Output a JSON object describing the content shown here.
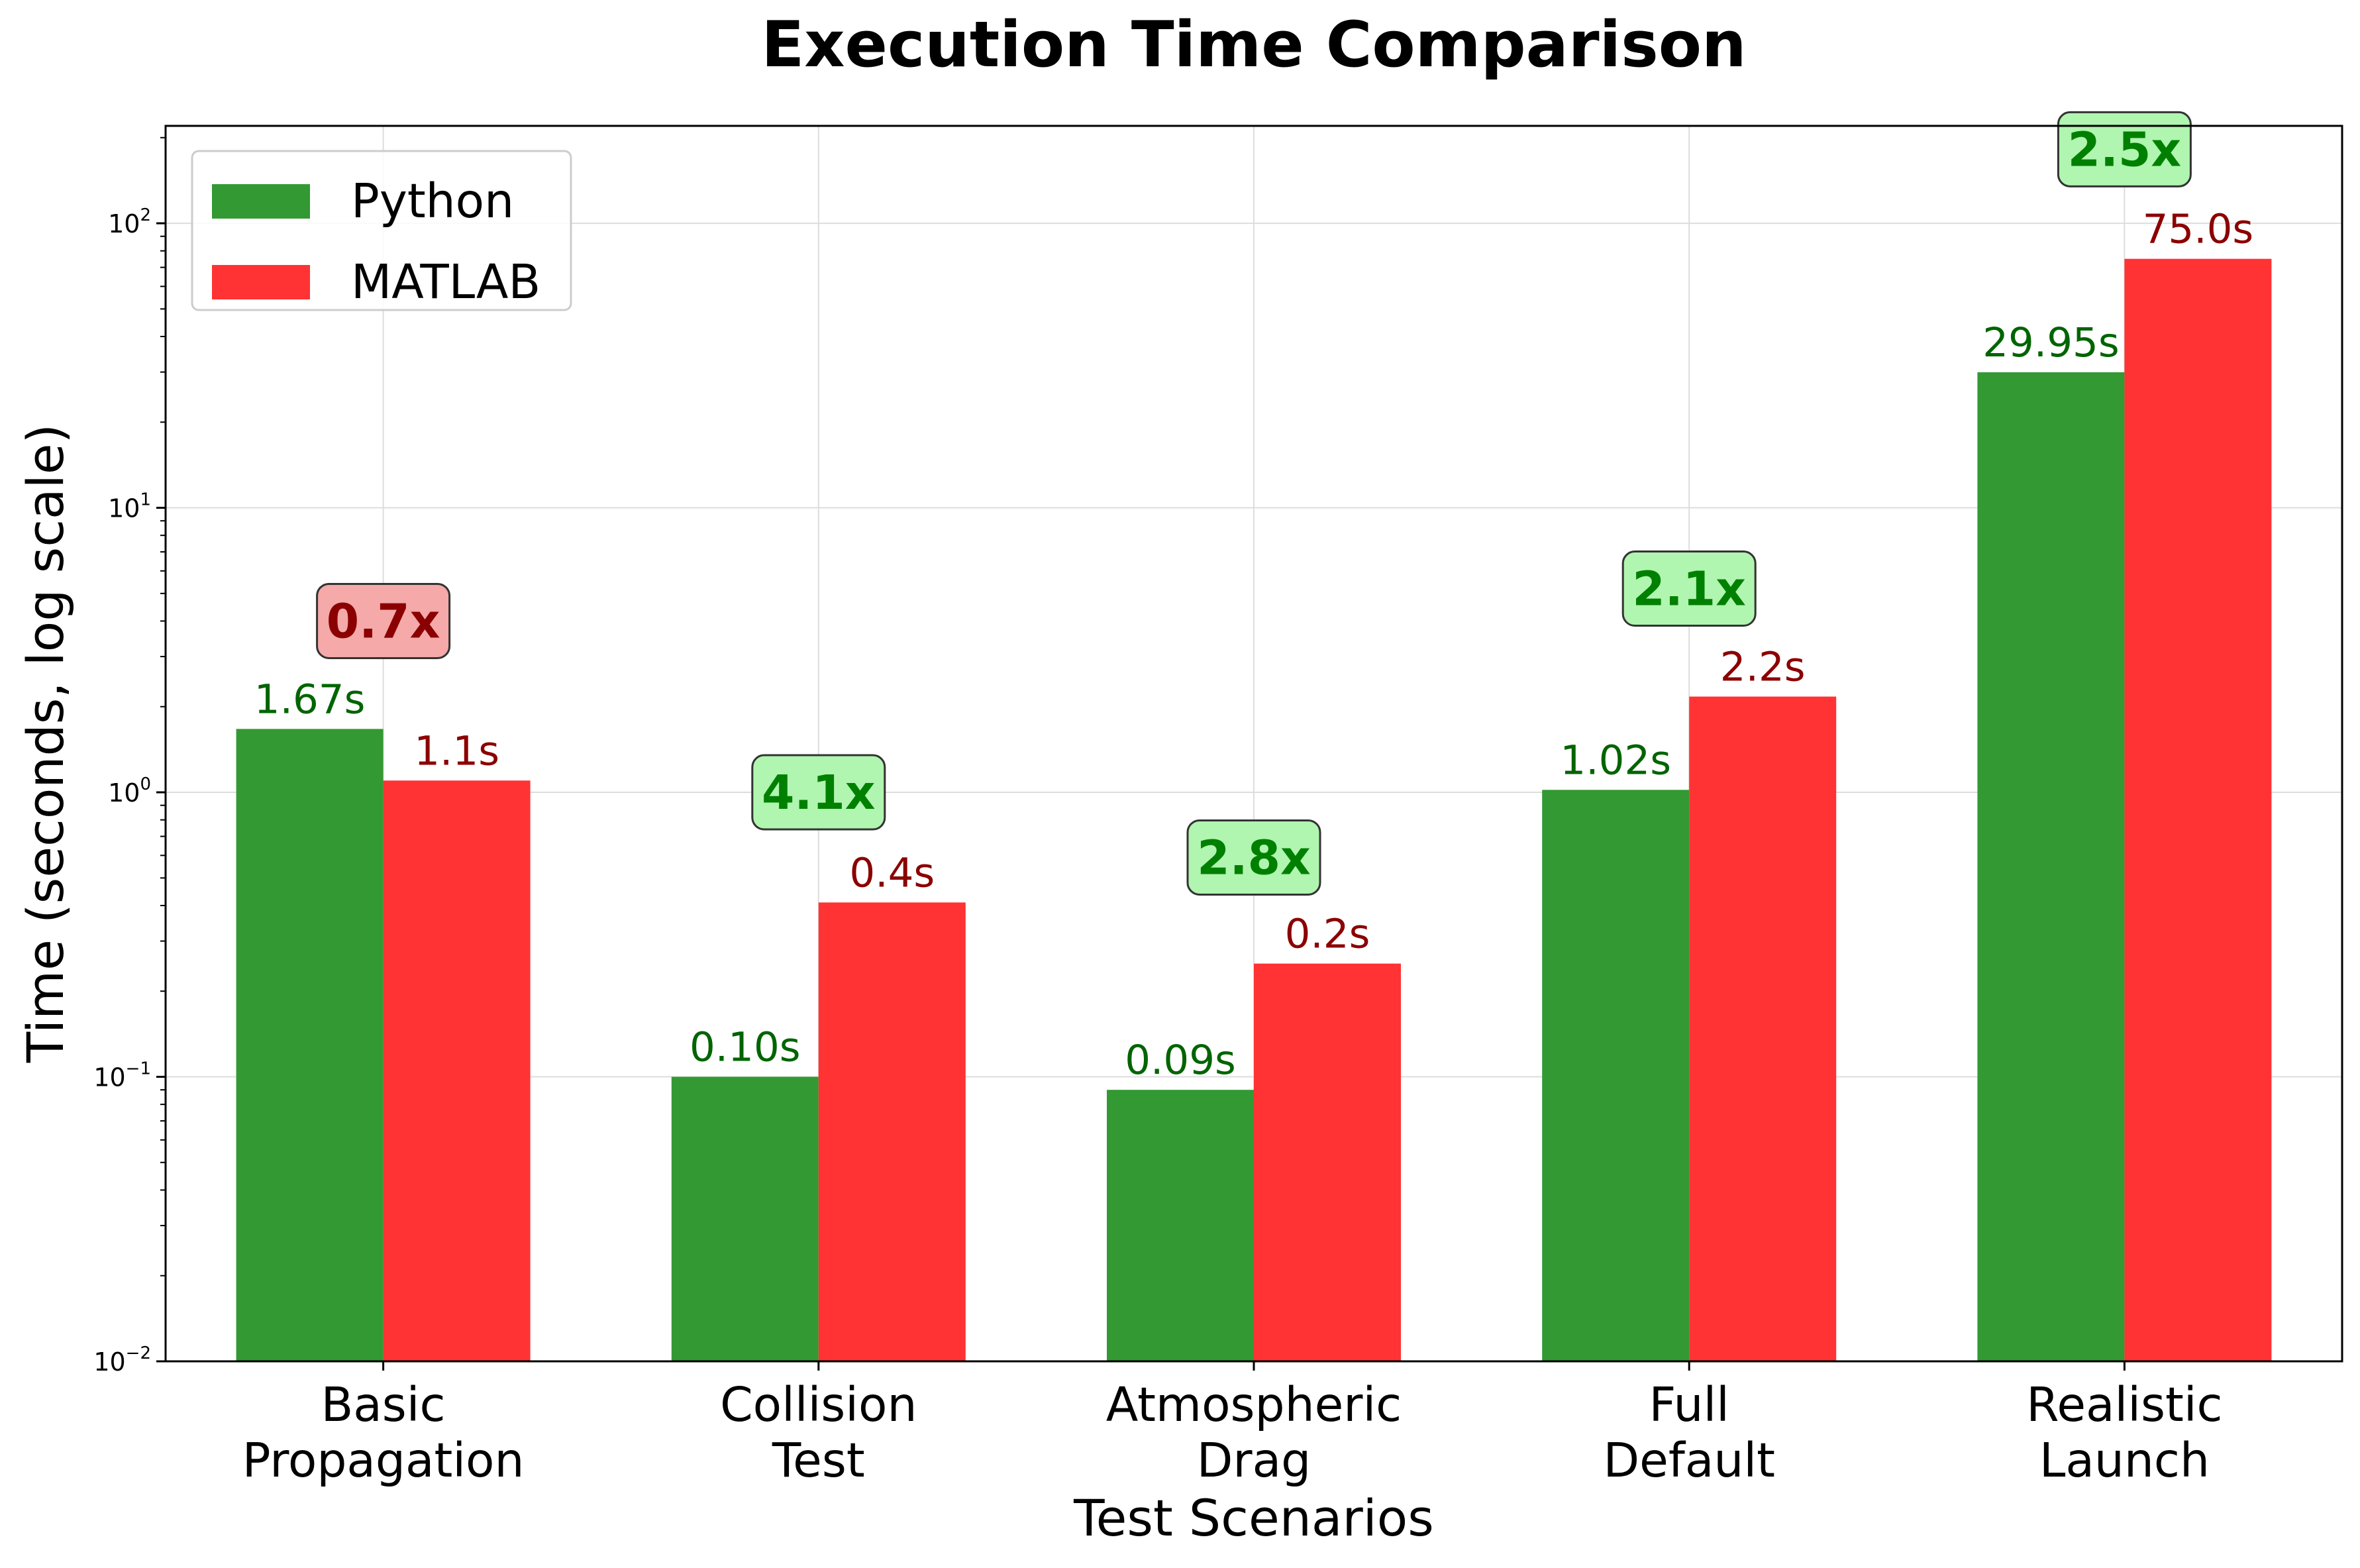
{
  "chart_data": {
    "type": "bar",
    "title": "Execution Time Comparison",
    "xlabel": "Test Scenarios",
    "ylabel": "Time (seconds, log scale)",
    "yscale": "log",
    "ylim": [
      0.01,
      220
    ],
    "yticks": [
      {
        "base": "10",
        "exp": "−2",
        "value": 0.01
      },
      {
        "base": "10",
        "exp": "−1",
        "value": 0.1
      },
      {
        "base": "10",
        "exp": "0",
        "value": 1
      },
      {
        "base": "10",
        "exp": "1",
        "value": 10
      },
      {
        "base": "10",
        "exp": "2",
        "value": 100
      }
    ],
    "grid": true,
    "legend_position": "top-left",
    "categories": [
      [
        "Basic",
        "Propagation"
      ],
      [
        "Collision",
        "Test"
      ],
      [
        "Atmospheric",
        "Drag"
      ],
      [
        "Full",
        "Default"
      ],
      [
        "Realistic",
        "Launch"
      ]
    ],
    "series": [
      {
        "name": "Python",
        "color": "#339933",
        "label_color": "#006400",
        "values": [
          1.67,
          0.1,
          0.09,
          1.02,
          29.95
        ],
        "labels": [
          "1.67s",
          "0.10s",
          "0.09s",
          "1.02s",
          "29.95s"
        ]
      },
      {
        "name": "MATLAB",
        "color": "#ff3333",
        "label_color": "#8b0000",
        "values": [
          1.1,
          0.41,
          0.25,
          2.17,
          75.0
        ],
        "labels": [
          "1.1s",
          "0.4s",
          "0.2s",
          "2.2s",
          "75.0s"
        ]
      }
    ],
    "speedups": [
      {
        "label": "0.7x",
        "value": 4.0,
        "faster": false
      },
      {
        "label": "4.1x",
        "value": 1.0,
        "faster": true
      },
      {
        "label": "2.8x",
        "value": 0.59,
        "faster": true
      },
      {
        "label": "2.1x",
        "value": 5.2,
        "faster": true
      },
      {
        "label": "2.5x",
        "value": 182,
        "faster": true
      }
    ],
    "colors": {
      "faster_fill": "#b0f5b0",
      "faster_text": "#008000",
      "slower_fill": "#f5a9a9",
      "slower_text": "#8b0000",
      "grid": "#dddddd"
    }
  }
}
